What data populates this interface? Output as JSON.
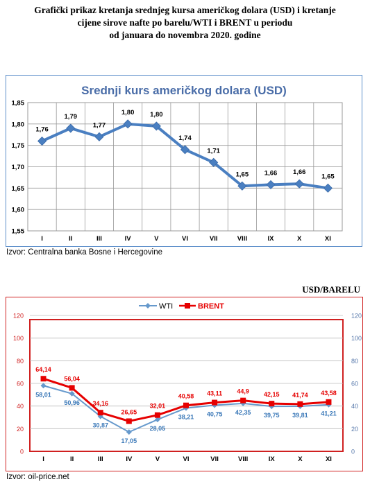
{
  "header": {
    "title_lines": [
      "Grafički prikaz kretanja srednjeg kursa američkog dolara (USD) i kretanje",
      "cijene sirove nafte po barelu/WTI i BRENT u periodu",
      "od januara do novembra  2020. godine"
    ]
  },
  "chart_data": [
    {
      "type": "line",
      "title": "Srednji kurs američkog dolara (USD)",
      "categories": [
        "I",
        "II",
        "III",
        "IV",
        "V",
        "VI",
        "VII",
        "VIII",
        "IX",
        "X",
        "XI"
      ],
      "series": [
        {
          "values": [
            1.76,
            1.79,
            1.77,
            1.8,
            1.795,
            1.74,
            1.71,
            1.655,
            1.658,
            1.66,
            1.65
          ],
          "labels": [
            "1,76",
            "1,79",
            "1,77",
            "1,80",
            "1,80",
            "1,74",
            "1,71",
            "1,65",
            "1,66",
            "1,66",
            "1,65"
          ],
          "color": "#4a7fc1"
        }
      ],
      "ylim": [
        1.55,
        1.85
      ],
      "yticks": [
        "1,55",
        "1,60",
        "1,65",
        "1,70",
        "1,75",
        "1,80",
        "1,85"
      ],
      "grid": true
    },
    {
      "type": "line",
      "categories": [
        "I",
        "II",
        "III",
        "IV",
        "V",
        "VI",
        "VII",
        "VIII",
        "IX",
        "X",
        "XI"
      ],
      "series": [
        {
          "name": "WTI",
          "values": [
            58.01,
            50.96,
            30.87,
            17.05,
            28.05,
            38.21,
            40.75,
            42.35,
            39.75,
            39.81,
            41.21
          ],
          "labels": [
            "58,01",
            "50,96",
            "30,87",
            "17,05",
            "28,05",
            "38,21",
            "40,75",
            "42,35",
            "39,75",
            "39,81",
            "41,21"
          ],
          "color": "#6699cc"
        },
        {
          "name": "BRENT",
          "values": [
            64.14,
            56.04,
            34.16,
            26.65,
            32.01,
            40.58,
            43.11,
            44.9,
            42.15,
            41.74,
            43.58
          ],
          "labels": [
            "64,14",
            "56,04",
            "34,16",
            "26,65",
            "32,01",
            "40,58",
            "43,11",
            "44,9",
            "42,15",
            "41,74",
            "43,58"
          ],
          "color": "#e60000"
        }
      ],
      "ylim": [
        0,
        120
      ],
      "yticks_left": [
        "0",
        "20",
        "40",
        "60",
        "80",
        "100",
        "120"
      ],
      "yticks_right": [
        "0",
        "20",
        "40",
        "60",
        "80",
        "100",
        "120"
      ],
      "unit_label": "USD/BARELU",
      "legend": "top-center",
      "grid": true
    }
  ],
  "sources": {
    "chart1": "Izvor: Centralna banka Bosne i Hercegovine",
    "chart2": "Izvor: oil-price.net"
  }
}
